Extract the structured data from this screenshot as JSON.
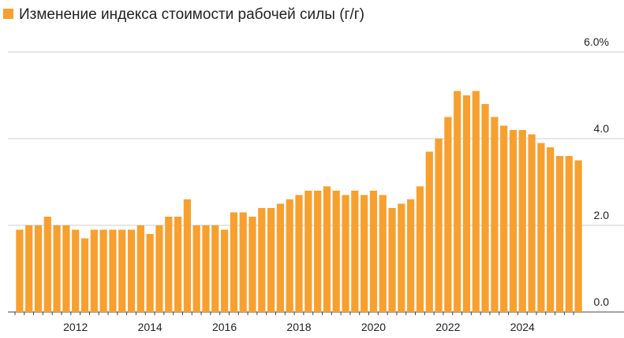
{
  "chart_data": {
    "type": "bar",
    "series": [
      {
        "name": "Изменение индекса стоимости рабочей силы (г/г)",
        "color": "#f7a030",
        "values": [
          1.9,
          2.0,
          2.0,
          2.2,
          2.0,
          2.0,
          1.9,
          1.7,
          1.9,
          1.9,
          1.9,
          1.9,
          1.9,
          2.0,
          1.8,
          2.0,
          2.2,
          2.2,
          2.6,
          2.0,
          2.0,
          2.0,
          1.9,
          2.3,
          2.3,
          2.2,
          2.4,
          2.4,
          2.5,
          2.6,
          2.7,
          2.8,
          2.8,
          2.9,
          2.8,
          2.7,
          2.8,
          2.7,
          2.8,
          2.7,
          2.4,
          2.5,
          2.6,
          2.9,
          3.7,
          4.0,
          4.5,
          5.1,
          5.0,
          5.1,
          4.8,
          4.5,
          4.3,
          4.2,
          4.2,
          4.1,
          3.9,
          3.8,
          3.6,
          3.6,
          3.5
        ]
      }
    ],
    "categories": [
      null,
      null,
      null,
      null,
      null,
      null,
      "2012",
      null,
      null,
      null,
      null,
      null,
      null,
      null,
      "2014",
      null,
      null,
      null,
      null,
      null,
      null,
      null,
      "2016",
      null,
      null,
      null,
      null,
      null,
      null,
      null,
      "2018",
      null,
      null,
      null,
      null,
      null,
      null,
      null,
      "2020",
      null,
      null,
      null,
      null,
      null,
      null,
      null,
      "2022",
      null,
      null,
      null,
      null,
      null,
      null,
      null,
      "2024",
      null,
      null,
      null,
      null,
      null,
      null
    ],
    "ylim": [
      0,
      6
    ],
    "yticks": [
      {
        "value": 0,
        "label": "0.0"
      },
      {
        "value": 2,
        "label": "2.0"
      },
      {
        "value": 4,
        "label": "4.0"
      },
      {
        "value": 6,
        "label": "6.0%"
      }
    ],
    "grid": true
  }
}
